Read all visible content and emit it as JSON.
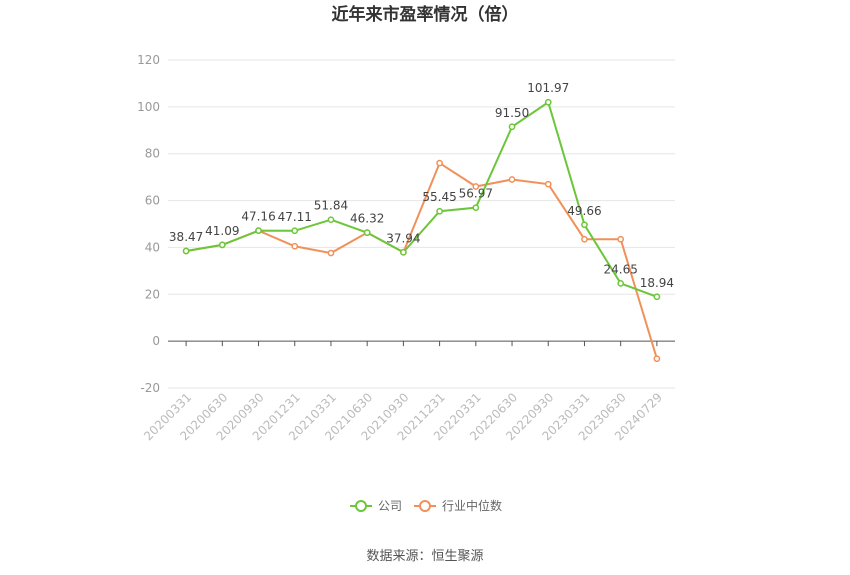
{
  "chart_data": {
    "type": "line",
    "title": "近年来市盈率情况（倍）",
    "categories": [
      "20200331",
      "20200630",
      "20200930",
      "20201231",
      "20210331",
      "20210630",
      "20210930",
      "20211231",
      "20220331",
      "20220630",
      "20220930",
      "20230331",
      "20230630",
      "20240729"
    ],
    "series": [
      {
        "name": "公司",
        "color": "#6cc63a",
        "values": [
          38.47,
          41.09,
          47.16,
          47.11,
          51.84,
          46.32,
          37.94,
          55.45,
          56.97,
          91.5,
          101.97,
          49.66,
          24.65,
          18.94
        ],
        "labels": [
          "38.47",
          "41.09",
          "47.16",
          "47.11",
          "51.84",
          "46.32",
          "37.94",
          "55.45",
          "56.97",
          "91.50",
          "101.97",
          "49.66",
          "24.65",
          "18.94"
        ]
      },
      {
        "name": "行业中位数",
        "color": "#f0915a",
        "values": [
          38.47,
          41.09,
          47.16,
          40.5,
          37.6,
          46.32,
          37.94,
          76.0,
          66.0,
          69.0,
          67.0,
          43.5,
          43.5,
          -7.5
        ]
      }
    ],
    "ylim": [
      -20,
      120
    ],
    "yticks": [
      "-20",
      "0",
      "20",
      "40",
      "60",
      "80",
      "100",
      "120"
    ],
    "ytick_values": [
      -20,
      0,
      20,
      40,
      60,
      80,
      100,
      120
    ],
    "grid": true,
    "legend_position": "bottom-center",
    "xlabel": "",
    "ylabel": ""
  },
  "source_text": "数据来源：恒生聚源"
}
